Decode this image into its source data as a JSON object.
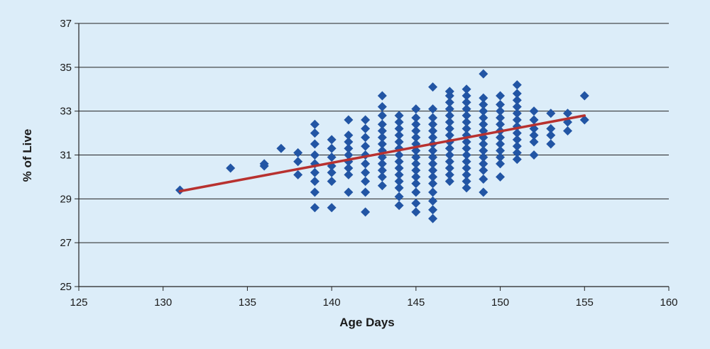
{
  "chart_data": {
    "type": "scatter",
    "title": "",
    "xlabel": "Age Days",
    "ylabel": "% of Live",
    "xlim": [
      125,
      160
    ],
    "ylim": [
      25,
      37
    ],
    "xticks": [
      125,
      130,
      135,
      140,
      145,
      150,
      155,
      160
    ],
    "yticks": [
      25,
      27,
      29,
      31,
      33,
      35,
      37
    ],
    "grid": "horizontal",
    "legend": "none",
    "colors": {
      "background": "#dcedf9",
      "points": "#2255a4",
      "trendline": "#b8312f",
      "grid": "#222222"
    },
    "series": [
      {
        "values": [
          [
            131,
            29.4
          ],
          [
            134,
            30.4
          ],
          [
            136,
            30.5
          ],
          [
            136,
            30.6
          ],
          [
            137,
            31.3
          ],
          [
            138,
            30.1
          ],
          [
            138,
            30.7
          ],
          [
            138,
            31.1
          ],
          [
            139,
            28.6
          ],
          [
            139,
            29.3
          ],
          [
            139,
            29.8
          ],
          [
            139,
            30.2
          ],
          [
            139,
            30.6
          ],
          [
            139,
            31.0
          ],
          [
            139,
            31.5
          ],
          [
            139,
            32.0
          ],
          [
            139,
            32.4
          ],
          [
            140,
            28.6
          ],
          [
            140,
            29.8
          ],
          [
            140,
            30.2
          ],
          [
            140,
            30.5
          ],
          [
            140,
            30.9
          ],
          [
            140,
            31.3
          ],
          [
            140,
            31.7
          ],
          [
            141,
            29.3
          ],
          [
            141,
            30.1
          ],
          [
            141,
            30.4
          ],
          [
            141,
            30.7
          ],
          [
            141,
            31.0
          ],
          [
            141,
            31.3
          ],
          [
            141,
            31.6
          ],
          [
            141,
            31.9
          ],
          [
            141,
            32.6
          ],
          [
            142,
            28.4
          ],
          [
            142,
            29.3
          ],
          [
            142,
            29.8
          ],
          [
            142,
            30.2
          ],
          [
            142,
            30.6
          ],
          [
            142,
            31.0
          ],
          [
            142,
            31.4
          ],
          [
            142,
            31.8
          ],
          [
            142,
            32.2
          ],
          [
            142,
            32.6
          ],
          [
            143,
            29.6
          ],
          [
            143,
            30.0
          ],
          [
            143,
            30.3
          ],
          [
            143,
            30.6
          ],
          [
            143,
            30.9
          ],
          [
            143,
            31.2
          ],
          [
            143,
            31.5
          ],
          [
            143,
            31.8
          ],
          [
            143,
            32.1
          ],
          [
            143,
            32.4
          ],
          [
            143,
            32.8
          ],
          [
            143,
            33.2
          ],
          [
            143,
            33.7
          ],
          [
            144,
            28.7
          ],
          [
            144,
            29.1
          ],
          [
            144,
            29.5
          ],
          [
            144,
            29.8
          ],
          [
            144,
            30.1
          ],
          [
            144,
            30.4
          ],
          [
            144,
            30.7
          ],
          [
            144,
            31.0
          ],
          [
            144,
            31.3
          ],
          [
            144,
            31.6
          ],
          [
            144,
            31.9
          ],
          [
            144,
            32.2
          ],
          [
            144,
            32.5
          ],
          [
            144,
            32.8
          ],
          [
            145,
            28.4
          ],
          [
            145,
            28.8
          ],
          [
            145,
            29.3
          ],
          [
            145,
            29.7
          ],
          [
            145,
            30.0
          ],
          [
            145,
            30.3
          ],
          [
            145,
            30.6
          ],
          [
            145,
            30.9
          ],
          [
            145,
            31.2
          ],
          [
            145,
            31.5
          ],
          [
            145,
            31.8
          ],
          [
            145,
            32.1
          ],
          [
            145,
            32.4
          ],
          [
            145,
            32.7
          ],
          [
            145,
            33.1
          ],
          [
            146,
            28.1
          ],
          [
            146,
            28.5
          ],
          [
            146,
            28.9
          ],
          [
            146,
            29.3
          ],
          [
            146,
            29.7
          ],
          [
            146,
            30.0
          ],
          [
            146,
            30.3
          ],
          [
            146,
            30.6
          ],
          [
            146,
            30.9
          ],
          [
            146,
            31.2
          ],
          [
            146,
            31.5
          ],
          [
            146,
            31.8
          ],
          [
            146,
            32.1
          ],
          [
            146,
            32.4
          ],
          [
            146,
            32.7
          ],
          [
            146,
            33.1
          ],
          [
            146,
            34.1
          ],
          [
            147,
            29.8
          ],
          [
            147,
            30.1
          ],
          [
            147,
            30.4
          ],
          [
            147,
            30.7
          ],
          [
            147,
            31.0
          ],
          [
            147,
            31.3
          ],
          [
            147,
            31.6
          ],
          [
            147,
            31.9
          ],
          [
            147,
            32.2
          ],
          [
            147,
            32.5
          ],
          [
            147,
            32.8
          ],
          [
            147,
            33.1
          ],
          [
            147,
            33.4
          ],
          [
            147,
            33.7
          ],
          [
            147,
            33.9
          ],
          [
            148,
            29.5
          ],
          [
            148,
            29.8
          ],
          [
            148,
            30.1
          ],
          [
            148,
            30.4
          ],
          [
            148,
            30.7
          ],
          [
            148,
            31.0
          ],
          [
            148,
            31.3
          ],
          [
            148,
            31.6
          ],
          [
            148,
            31.9
          ],
          [
            148,
            32.2
          ],
          [
            148,
            32.5
          ],
          [
            148,
            32.8
          ],
          [
            148,
            33.1
          ],
          [
            148,
            33.4
          ],
          [
            148,
            33.7
          ],
          [
            148,
            34.0
          ],
          [
            149,
            29.3
          ],
          [
            149,
            29.9
          ],
          [
            149,
            30.3
          ],
          [
            149,
            30.6
          ],
          [
            149,
            30.9
          ],
          [
            149,
            31.2
          ],
          [
            149,
            31.5
          ],
          [
            149,
            31.8
          ],
          [
            149,
            32.1
          ],
          [
            149,
            32.4
          ],
          [
            149,
            32.7
          ],
          [
            149,
            33.0
          ],
          [
            149,
            33.3
          ],
          [
            149,
            33.6
          ],
          [
            149,
            34.7
          ],
          [
            150,
            30.0
          ],
          [
            150,
            30.6
          ],
          [
            150,
            30.9
          ],
          [
            150,
            31.2
          ],
          [
            150,
            31.5
          ],
          [
            150,
            31.8
          ],
          [
            150,
            32.1
          ],
          [
            150,
            32.4
          ],
          [
            150,
            32.7
          ],
          [
            150,
            33.0
          ],
          [
            150,
            33.3
          ],
          [
            150,
            33.7
          ],
          [
            151,
            30.8
          ],
          [
            151,
            31.1
          ],
          [
            151,
            31.4
          ],
          [
            151,
            31.7
          ],
          [
            151,
            32.0
          ],
          [
            151,
            32.3
          ],
          [
            151,
            32.6
          ],
          [
            151,
            32.9
          ],
          [
            151,
            33.2
          ],
          [
            151,
            33.5
          ],
          [
            151,
            33.8
          ],
          [
            151,
            34.2
          ],
          [
            152,
            31.0
          ],
          [
            152,
            31.6
          ],
          [
            152,
            31.9
          ],
          [
            152,
            32.2
          ],
          [
            152,
            32.6
          ],
          [
            152,
            33.0
          ],
          [
            153,
            31.5
          ],
          [
            153,
            31.9
          ],
          [
            153,
            32.2
          ],
          [
            153,
            32.9
          ],
          [
            154,
            32.1
          ],
          [
            154,
            32.5
          ],
          [
            154,
            32.9
          ],
          [
            155,
            32.6
          ],
          [
            155,
            33.7
          ]
        ]
      }
    ],
    "trendline": {
      "x": [
        131,
        155
      ],
      "y": [
        29.35,
        32.8
      ]
    }
  }
}
